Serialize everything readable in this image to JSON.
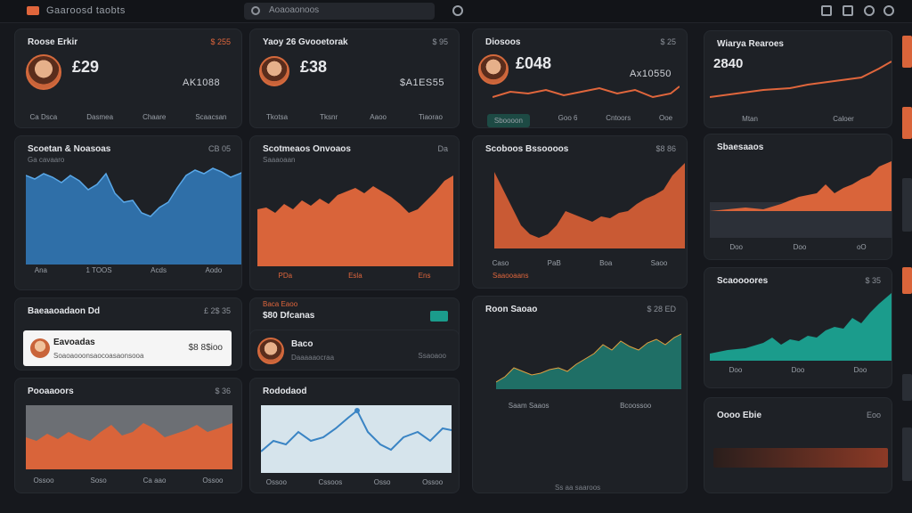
{
  "header": {
    "app_title": "Gaaroosd taobts",
    "search_placeholder": "Aoaoaonoos",
    "icons": [
      "bell-icon",
      "grid-icon",
      "settings-icon",
      "user-icon"
    ]
  },
  "cards": {
    "c1": {
      "title": "Roose Erkir",
      "meta": "$ 255",
      "big": "£29",
      "stat": "AK1088",
      "tabs": [
        "Ca Dsca",
        "Dasmea",
        "Chaare",
        "Scaacsan"
      ],
      "accent": "#e0663c"
    },
    "c2": {
      "title": "Yaoy 26 Gvooetorak",
      "meta": "$ 95",
      "big": "£38",
      "stat": "$A1ES55",
      "tabs": [
        "Tkotsa",
        "Tksnr",
        "Aaoo",
        "Tiaorao"
      ]
    },
    "c3": {
      "title": "Diosoos",
      "meta": "$ 25",
      "big": "£048",
      "stat": "Ax10550",
      "tabs": [
        "Sboooon",
        "Goo 6",
        "Cntoors",
        "Ooe"
      ]
    },
    "c4": {
      "title": "Wiarya Rearoes",
      "big": "2840",
      "tabs": [
        "Mtan",
        "Caloer"
      ]
    },
    "c5": {
      "title": "Scoetan & Noasoas",
      "meta": "CB 05",
      "sub": "Ga cavaaro",
      "ticks": [
        "Ana",
        "1 TOOS",
        "Acds",
        "Aodo"
      ]
    },
    "c6": {
      "title": "Scotmeaos Onvoaos",
      "meta": "Da",
      "sub": "Saaaoaan",
      "ticks": [
        "PDa",
        "Esla",
        "Ens"
      ]
    },
    "c7": {
      "title": "Scoboos Bssoooos",
      "meta": "$8 86",
      "ticks": [
        "Caso",
        "PaB",
        "Boa",
        "Saoo"
      ],
      "legend": "Saaooaans"
    },
    "c8": {
      "title": "Sbaesaaos",
      "ticks": [
        "Doo",
        "Doo",
        "oO"
      ]
    },
    "c9": {
      "title": "Baeaaoadaon Dd",
      "meta": "£ 2$ 35",
      "row_title": "Eavoadas",
      "row_sub": "Soaoaooonsaocoasaonsooa",
      "row_value": "$8 8$ioo"
    },
    "c10": {
      "title": "$80 Dfcanas",
      "label": "Baca Eaoo",
      "row_title": "Baco",
      "row_sub": "Daaaaaocraa",
      "row_value": "Ssaoaoo"
    },
    "c11": {
      "title": "Roon Saoao",
      "meta": "$ 28 ED",
      "ticks": [
        "Saam Saaos",
        "Bcoossoo"
      ],
      "foot": "Ss aa saaroos"
    },
    "c12": {
      "title": "Scaoooores",
      "meta": "$ 35",
      "ticks": [
        "Doo",
        "Doo",
        "Doo"
      ]
    },
    "c13": {
      "title": "Pooaaoors",
      "meta": "$ 36",
      "ticks": [
        "Ossoo",
        "Soso",
        "Ca aao",
        "Ossoo"
      ]
    },
    "c14": {
      "title": "Rododaod",
      "ticks": [
        "Ossoo",
        "Cssoos",
        "Osso",
        "Ossoo"
      ]
    },
    "c15": {
      "title": "Oooo Ebie",
      "meta": "Eoo"
    }
  },
  "colors": {
    "orange": "#e0663c",
    "blue": "#3a84c4",
    "teal": "#1b9c8c"
  }
}
